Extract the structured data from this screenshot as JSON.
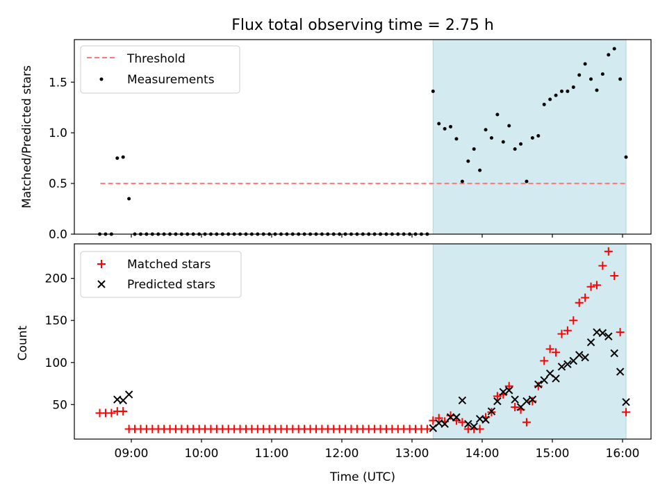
{
  "title": "Flux total observing time = 2.75 h",
  "xlabel": "Time (UTC)",
  "x_ticks": [
    "09:00",
    "10:00",
    "11:00",
    "12:00",
    "13:00",
    "14:00",
    "15:00",
    "16:00"
  ],
  "colors": {
    "threshold": "#ff7777",
    "measurements": "#000000",
    "matched": "#ff0000",
    "predicted": "#000000",
    "shade": "#d3eaf0",
    "shade_edge": "#a9d6df"
  },
  "chart_data": [
    {
      "type": "scatter",
      "ylabel": "Matched/Predicted stars",
      "xlim": [
        "08:33",
        "16:25"
      ],
      "ylim": [
        0,
        1.92
      ],
      "y_ticks": [
        "0.0",
        "0.5",
        "1.0",
        "1.5"
      ],
      "shaded_interval": [
        "13:18",
        "16:03"
      ],
      "legend": {
        "placement": "top-left",
        "entries": [
          {
            "label": "Threshold",
            "marker": "dashed-line"
          },
          {
            "label": "Measurements",
            "marker": "dot"
          }
        ]
      },
      "threshold": {
        "name": "Threshold",
        "value": 0.5,
        "x": [
          "08:33",
          "16:03"
        ]
      },
      "series": [
        {
          "name": "Measurements",
          "x": [
            "08:33",
            "08:38",
            "08:43",
            "08:48",
            "08:53",
            "08:58",
            "09:03",
            "09:08",
            "09:13",
            "09:18",
            "09:23",
            "09:28",
            "09:33",
            "09:38",
            "09:43",
            "09:48",
            "09:53",
            "09:58",
            "10:03",
            "10:08",
            "10:13",
            "10:18",
            "10:23",
            "10:28",
            "10:33",
            "10:38",
            "10:43",
            "10:48",
            "10:53",
            "10:58",
            "11:03",
            "11:08",
            "11:13",
            "11:18",
            "11:23",
            "11:28",
            "11:33",
            "11:38",
            "11:43",
            "11:48",
            "11:53",
            "11:58",
            "12:03",
            "12:08",
            "12:13",
            "12:18",
            "12:23",
            "12:28",
            "12:33",
            "12:38",
            "12:43",
            "12:48",
            "12:53",
            "12:58",
            "13:03",
            "13:08",
            "13:13",
            "13:18",
            "13:23",
            "13:28",
            "13:33",
            "13:38",
            "13:43",
            "13:48",
            "13:53",
            "13:58",
            "14:03",
            "14:08",
            "14:13",
            "14:18",
            "14:23",
            "14:28",
            "14:33",
            "14:38",
            "14:43",
            "14:48",
            "14:53",
            "14:58",
            "15:03",
            "15:08",
            "15:13",
            "15:18",
            "15:23",
            "15:28",
            "15:33",
            "15:38",
            "15:43",
            "15:48",
            "15:53",
            "15:58",
            "16:03"
          ],
          "y": [
            0,
            0,
            0,
            0.75,
            0.76,
            0.35,
            0,
            0,
            0,
            0,
            0,
            0,
            0,
            0,
            0,
            0,
            0,
            0,
            0,
            0,
            0,
            0,
            0,
            0,
            0,
            0,
            0,
            0,
            0,
            0,
            0,
            0,
            0,
            0,
            0,
            0,
            0,
            0,
            0,
            0,
            0,
            0,
            0,
            0,
            0,
            0,
            0,
            0,
            0,
            0,
            0,
            0,
            0,
            0,
            0,
            0,
            0,
            1.41,
            1.09,
            1.04,
            1.06,
            0.94,
            0.52,
            0.72,
            0.84,
            0.63,
            1.03,
            0.95,
            1.18,
            0.91,
            1.07,
            0.84,
            0.89,
            0.52,
            0.95,
            0.97,
            1.28,
            1.33,
            1.37,
            1.41,
            1.41,
            1.45,
            1.57,
            1.68,
            1.53,
            1.42,
            1.58,
            1.77,
            1.83,
            1.53,
            0.76
          ]
        }
      ]
    },
    {
      "type": "scatter",
      "ylabel": "Count",
      "xlabel": "Time (UTC)",
      "xlim": [
        "08:33",
        "16:25"
      ],
      "ylim": [
        9,
        241
      ],
      "y_ticks": [
        "50",
        "100",
        "150",
        "200"
      ],
      "shaded_interval": [
        "13:18",
        "16:03"
      ],
      "legend": {
        "placement": "top-left",
        "entries": [
          {
            "label": "Matched stars",
            "marker": "plus"
          },
          {
            "label": "Predicted stars",
            "marker": "cross"
          }
        ]
      },
      "series": [
        {
          "name": "Matched stars",
          "x": [
            "08:33",
            "08:38",
            "08:43",
            "08:48",
            "08:53",
            "08:58",
            "09:03",
            "09:08",
            "09:13",
            "09:18",
            "09:23",
            "09:28",
            "09:33",
            "09:38",
            "09:43",
            "09:48",
            "09:53",
            "09:58",
            "10:03",
            "10:08",
            "10:13",
            "10:18",
            "10:23",
            "10:28",
            "10:33",
            "10:38",
            "10:43",
            "10:48",
            "10:53",
            "10:58",
            "11:03",
            "11:08",
            "11:13",
            "11:18",
            "11:23",
            "11:28",
            "11:33",
            "11:38",
            "11:43",
            "11:48",
            "11:53",
            "11:58",
            "12:03",
            "12:08",
            "12:13",
            "12:18",
            "12:23",
            "12:28",
            "12:33",
            "12:38",
            "12:43",
            "12:48",
            "12:53",
            "12:58",
            "13:03",
            "13:08",
            "13:13",
            "13:18",
            "13:23",
            "13:28",
            "13:33",
            "13:38",
            "13:43",
            "13:48",
            "13:53",
            "13:58",
            "14:03",
            "14:08",
            "14:13",
            "14:18",
            "14:23",
            "14:28",
            "14:33",
            "14:38",
            "14:43",
            "14:48",
            "14:53",
            "14:58",
            "15:03",
            "15:08",
            "15:13",
            "15:18",
            "15:23",
            "15:28",
            "15:33",
            "15:38",
            "15:43",
            "15:48",
            "15:53",
            "15:58",
            "16:03"
          ],
          "y": [
            40,
            40,
            40,
            42,
            42,
            21,
            21,
            21,
            21,
            21,
            21,
            21,
            21,
            21,
            21,
            21,
            21,
            21,
            21,
            21,
            21,
            21,
            21,
            21,
            21,
            21,
            21,
            21,
            21,
            21,
            21,
            21,
            21,
            21,
            21,
            21,
            21,
            21,
            21,
            21,
            21,
            21,
            21,
            21,
            21,
            21,
            21,
            21,
            21,
            21,
            21,
            21,
            21,
            21,
            21,
            21,
            21,
            31,
            34,
            30,
            37,
            31,
            29,
            21,
            21,
            21,
            35,
            41,
            60,
            62,
            72,
            47,
            44,
            29,
            54,
            72,
            102,
            116,
            112,
            134,
            138,
            150,
            171,
            177,
            190,
            192,
            215,
            232,
            203,
            136,
            41
          ]
        },
        {
          "name": "Predicted stars",
          "x": [
            "08:48",
            "08:53",
            "08:58",
            "13:18",
            "13:23",
            "13:28",
            "13:33",
            "13:38",
            "13:43",
            "13:48",
            "13:53",
            "13:58",
            "14:03",
            "14:08",
            "14:13",
            "14:18",
            "14:23",
            "14:28",
            "14:33",
            "14:38",
            "14:43",
            "14:48",
            "14:53",
            "14:58",
            "15:03",
            "15:08",
            "15:13",
            "15:18",
            "15:23",
            "15:28",
            "15:33",
            "15:38",
            "15:43",
            "15:48",
            "15:53",
            "15:58",
            "16:03"
          ],
          "y": [
            56,
            55,
            62,
            22,
            28,
            27,
            35,
            35,
            55,
            27,
            24,
            33,
            32,
            42,
            54,
            65,
            67,
            56,
            47,
            54,
            56,
            74,
            79,
            87,
            81,
            95,
            98,
            102,
            109,
            106,
            124,
            136,
            135,
            131,
            111,
            89,
            53
          ]
        }
      ]
    }
  ]
}
